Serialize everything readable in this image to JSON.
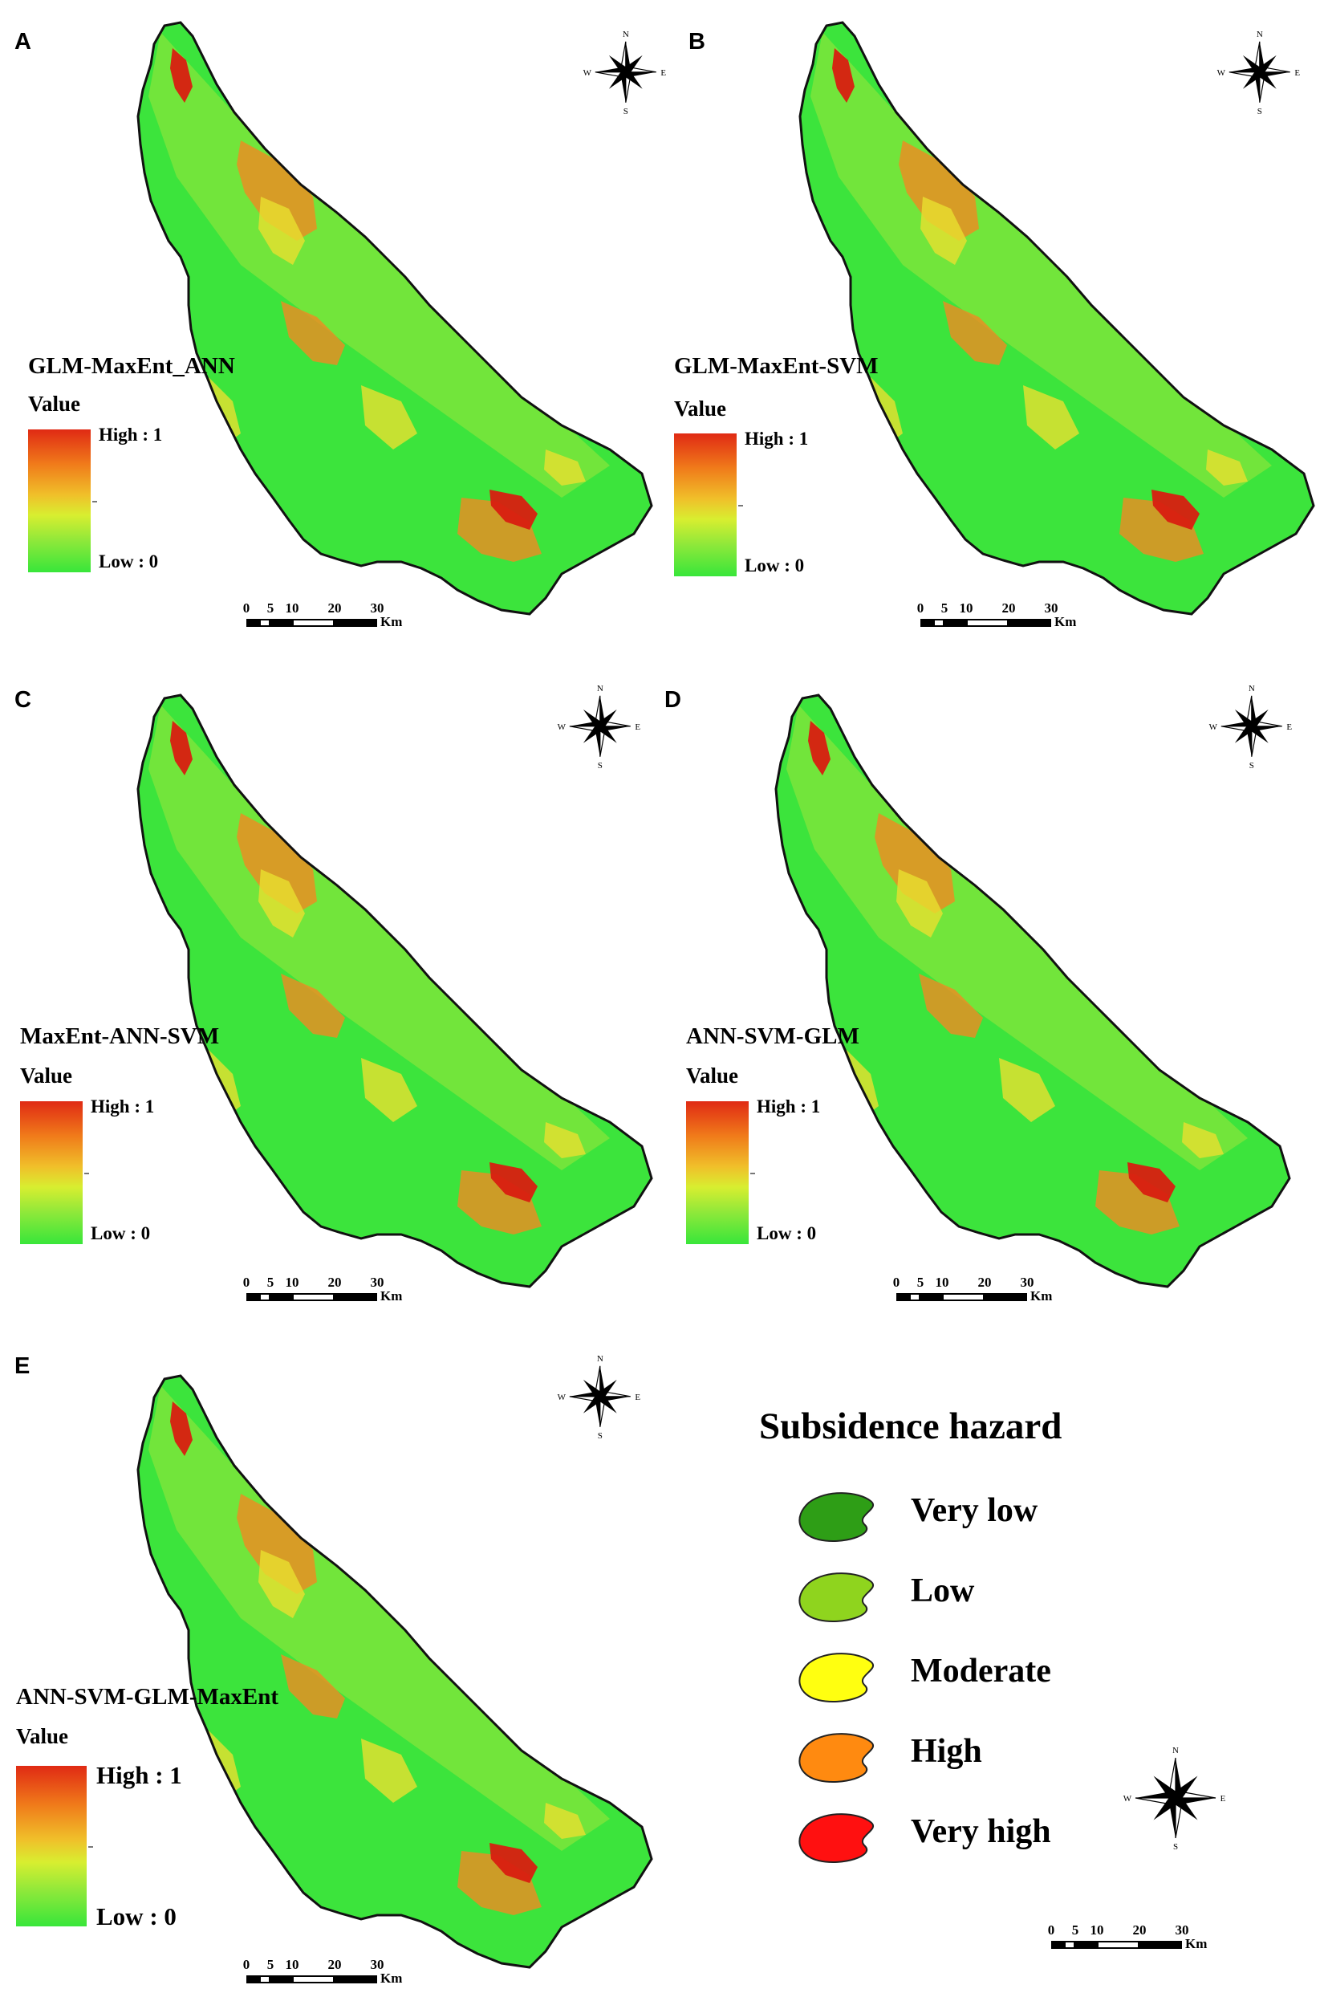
{
  "panels": [
    {
      "letter": "A",
      "model": "GLM-MaxEnt_ANN",
      "value_label": "Value",
      "high": "High : 1",
      "low": "Low : 0"
    },
    {
      "letter": "B",
      "model": "GLM-MaxEnt-SVM",
      "value_label": "Value",
      "high": "High : 1",
      "low": "Low : 0"
    },
    {
      "letter": "C",
      "model": "MaxEnt-ANN-SVM",
      "value_label": "Value",
      "high": "High : 1",
      "low": "Low : 0"
    },
    {
      "letter": "D",
      "model": "ANN-SVM-GLM",
      "value_label": "Value",
      "high": "High : 1",
      "low": "Low : 0"
    },
    {
      "letter": "E",
      "model": "ANN-SVM-GLM-MaxEnt",
      "value_label": "Value",
      "high": "High : 1",
      "low": "Low : 0"
    }
  ],
  "scale_bar": {
    "ticks": [
      "0",
      "5",
      "10",
      "20",
      "30"
    ],
    "unit": "Km"
  },
  "compass": {
    "n": "N",
    "e": "E",
    "s": "S",
    "w": "W"
  },
  "legend": {
    "title": "Subsidence hazard",
    "classes": [
      {
        "label": "Very low",
        "color": "#2e9e16"
      },
      {
        "label": "Low",
        "color": "#8fd41e"
      },
      {
        "label": "Moderate",
        "color": "#ffff10"
      },
      {
        "label": "High",
        "color": "#ff8a10"
      },
      {
        "label": "Very high",
        "color": "#ff1010"
      }
    ]
  },
  "colors": {
    "base": "#3ce43c",
    "light": "#9ee63a",
    "moderate": "#e8e030",
    "high": "#f08a22",
    "very_high": "#d81e10",
    "outline": "#111111"
  }
}
